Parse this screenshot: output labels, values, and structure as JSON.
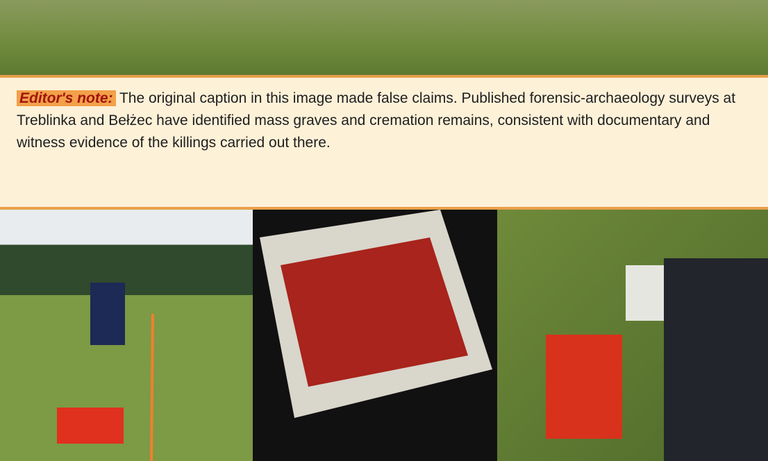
{
  "caption": {
    "lead": "Editor's note:",
    "body": "The original caption in this image made false claims. Published forensic-archaeology surveys at Treblinka and Bełżec have identified mass graves and cremation remains, consistent with documentary and witness evidence of the killings carried out there."
  }
}
